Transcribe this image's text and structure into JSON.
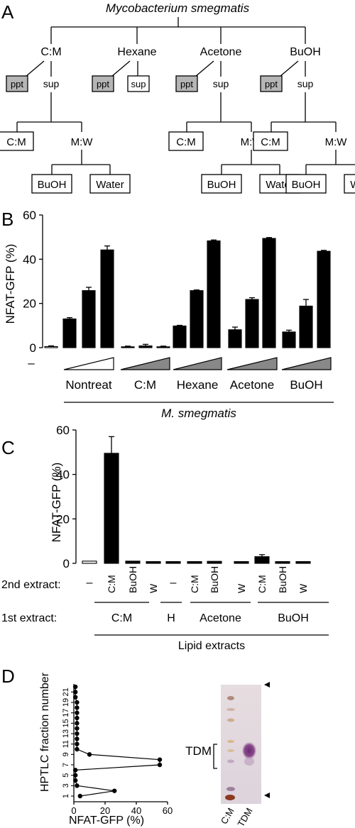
{
  "panelA": {
    "letter": "A",
    "root": "Mycobacterium smegmatis",
    "solvents": [
      "C:M",
      "Hexane",
      "Acetone",
      "BuOH"
    ],
    "ppt": "ppt",
    "sup": "sup",
    "cm": "C:M",
    "mw": "M:W",
    "buoh": "BuOH",
    "water": "Water"
  },
  "panelB": {
    "letter": "B",
    "ylabel": "NFAT-GFP (%)",
    "dash": "–",
    "groups": [
      "Nontreat",
      "C:M",
      "Hexane",
      "Acetone",
      "BuOH"
    ],
    "footer": "M. smegmatis"
  },
  "panelC": {
    "letter": "C",
    "ylabel": "NFAT-GFP (%)",
    "row2_label": "2nd extract:",
    "row1_label": "1st extract:",
    "second": [
      "–",
      "C:M",
      "BuOH",
      "W",
      "–",
      "C:M",
      "BuOH",
      "W",
      "C:M",
      "BuOH",
      "W"
    ],
    "first": [
      "C:M",
      "H",
      "Acetone",
      "BuOH"
    ],
    "footer": "Lipid extracts"
  },
  "panelD": {
    "letter": "D",
    "ylabel": "HPTLC fraction number",
    "xlabel": "NFAT-GFP (%)",
    "tdm_label": "TDM",
    "lane_labels": [
      "C:M",
      "TDM"
    ]
  },
  "chart_data": [
    {
      "type": "bar",
      "title": "",
      "ylabel": "NFAT-GFP (%)",
      "ylim": [
        0,
        60
      ],
      "yticks": [
        0,
        20,
        40,
        60
      ],
      "categories": [
        "–",
        "Nontreat",
        "Nontreat",
        "Nontreat",
        "C:M",
        "C:M",
        "C:M",
        "Hexane",
        "Hexane",
        "Hexane",
        "Acetone",
        "Acetone",
        "Acetone",
        "BuOH",
        "BuOH",
        "BuOH"
      ],
      "values": [
        0.5,
        13,
        25.8,
        44.2,
        0.4,
        0.8,
        0.4,
        9.8,
        25.8,
        48.3,
        8.1,
        21.8,
        49.4,
        7.1,
        18.8,
        43.6
      ],
      "errors": [
        0.3,
        0.6,
        1.5,
        1.8,
        0.3,
        0.7,
        0.3,
        0.3,
        0.3,
        0.4,
        1.2,
        0.8,
        0.4,
        0.8,
        3,
        0.4
      ],
      "xlabel": "M. smegmatis"
    },
    {
      "type": "bar",
      "title": "",
      "ylabel": "NFAT-GFP (%)",
      "ylim": [
        0,
        60
      ],
      "yticks": [
        0,
        20,
        40,
        60
      ],
      "categories": [
        "–",
        "C:M",
        "BuOH",
        "W",
        "–",
        "C:M",
        "BuOH",
        "W",
        "C:M",
        "BuOH",
        "W"
      ],
      "first_extract": [
        "C:M",
        "C:M",
        "C:M",
        "C:M",
        "H",
        "Acetone",
        "Acetone",
        "Acetone",
        "BuOH",
        "BuOH",
        "BuOH"
      ],
      "values": [
        1.0,
        49.5,
        1.0,
        0.8,
        0.8,
        0.8,
        0.9,
        0.8,
        3.0,
        0.8,
        0.8
      ],
      "errors": [
        0,
        7.5,
        0,
        0,
        0,
        0,
        0,
        0,
        0.9,
        0,
        0
      ],
      "xlabel": "Lipid extracts"
    },
    {
      "type": "line",
      "title": "",
      "xlabel": "NFAT-GFP (%)",
      "ylabel": "HPTLC fraction number",
      "xlim": [
        0,
        60
      ],
      "xticks": [
        0,
        20,
        40,
        60
      ],
      "yticks": [
        1,
        3,
        5,
        7,
        9,
        11,
        13,
        15,
        17,
        19,
        21
      ],
      "x": [
        4,
        26,
        2,
        1,
        1,
        1,
        55,
        55,
        10,
        2,
        2,
        2,
        2,
        2,
        2,
        2,
        2,
        2,
        2,
        1,
        1,
        1
      ],
      "y": [
        1,
        2,
        3,
        4,
        5,
        6,
        7,
        8,
        9,
        10,
        11,
        12,
        13,
        14,
        15,
        16,
        17,
        18,
        19,
        20,
        21,
        22
      ]
    }
  ]
}
